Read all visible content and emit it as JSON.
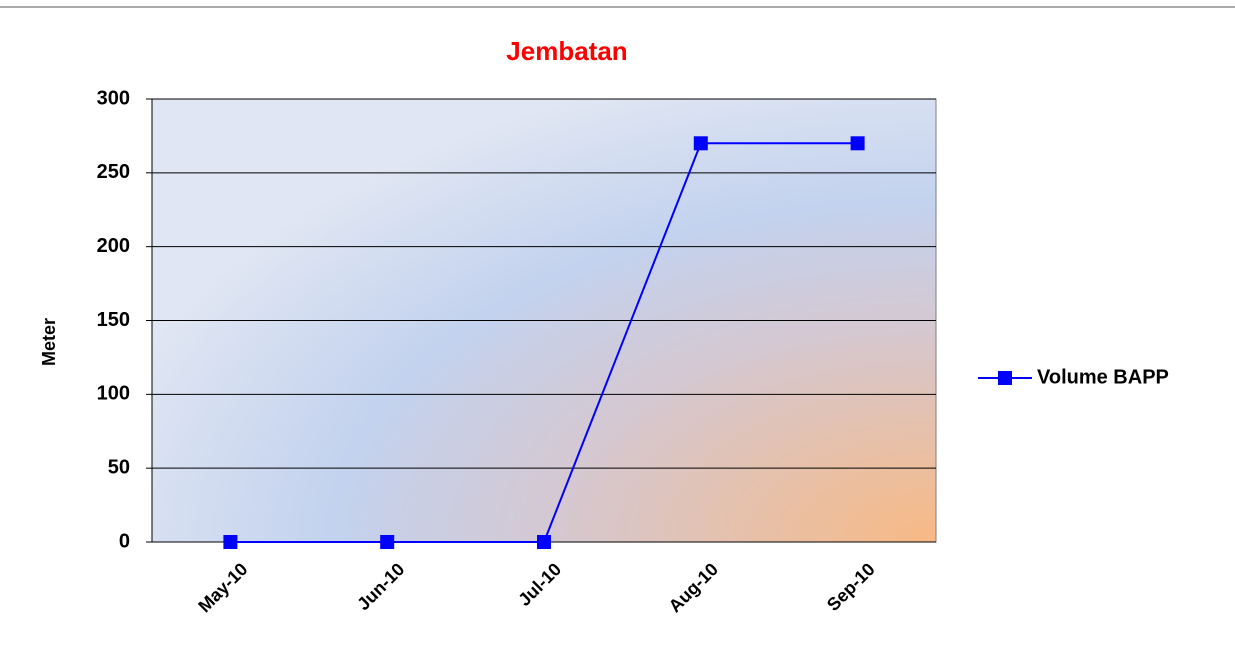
{
  "chart_data": {
    "type": "line",
    "title": "Jembatan",
    "ylabel": "Meter",
    "categories": [
      "May-10",
      "Jun-10",
      "Jul-10",
      "Aug-10",
      "Sep-10"
    ],
    "series": [
      {
        "name": "Volume BAPP",
        "color": "#0000ff",
        "values": [
          0,
          0,
          0,
          270,
          270
        ]
      }
    ],
    "ylim": [
      0,
      300
    ],
    "yticks": [
      0,
      50,
      100,
      150,
      200,
      250,
      300
    ],
    "grid": true,
    "legend": "right"
  }
}
